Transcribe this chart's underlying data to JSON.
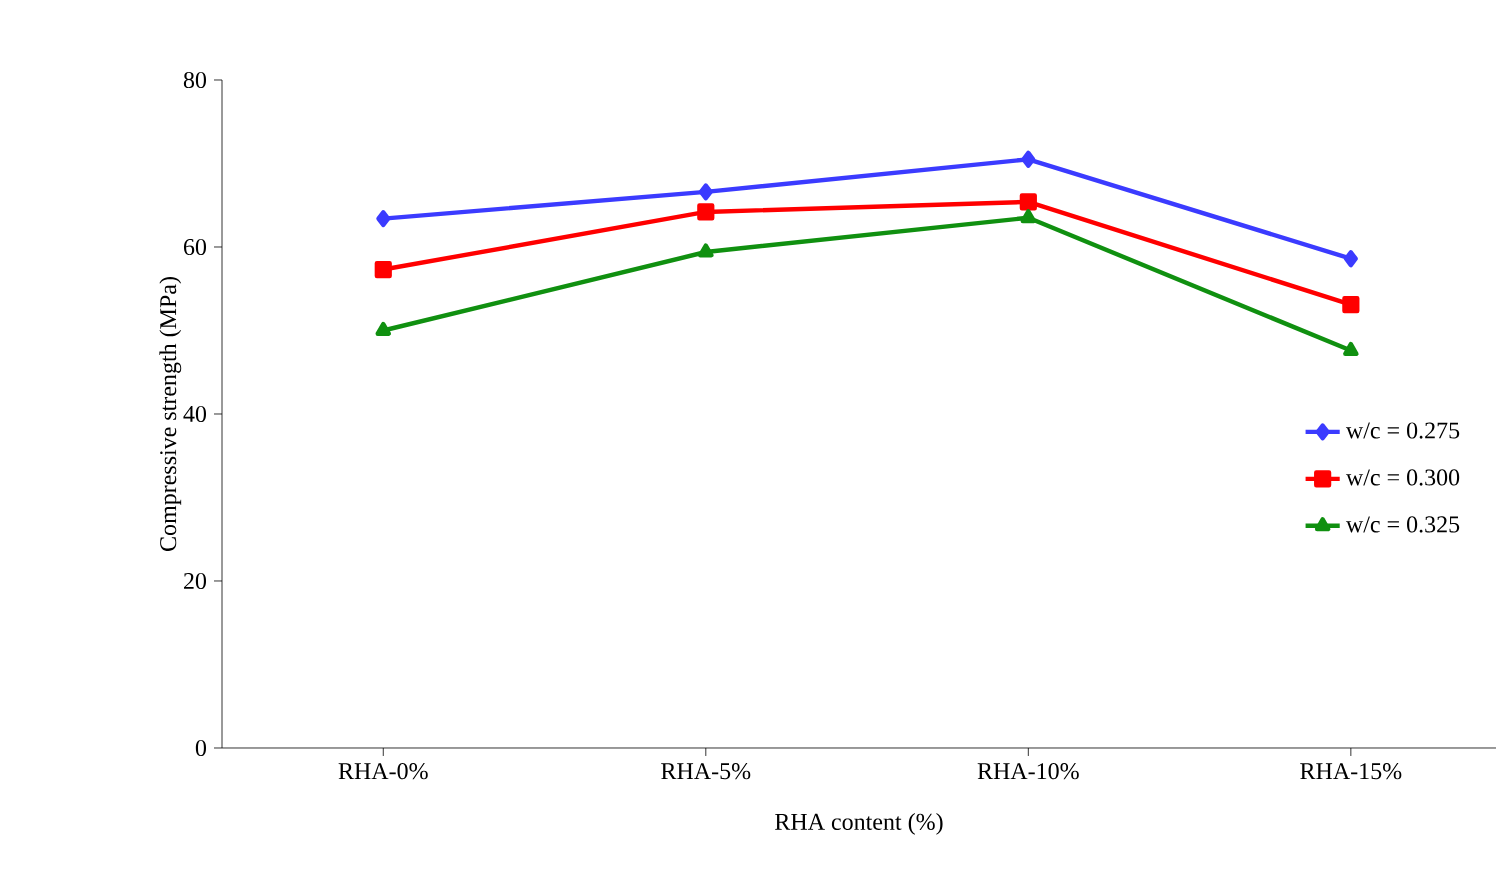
{
  "chart_data": {
    "type": "line",
    "xlabel": "RHA content (%)",
    "ylabel": "Compressive strength (MPa)",
    "categories": [
      "RHA-0%",
      "RHA-5%",
      "RHA-10%",
      "RHA-15%"
    ],
    "ylim": [
      0,
      80
    ],
    "yticks": [
      0,
      20,
      40,
      60,
      80
    ],
    "grid": false,
    "legend": "right",
    "line_style": "solid",
    "series": [
      {
        "name": "w/c = 0.275",
        "color": "#3b3bff",
        "marker": "diamond",
        "values": [
          63.4,
          66.6,
          70.5,
          58.6
        ]
      },
      {
        "name": "w/c = 0.300",
        "color": "#ff0000",
        "marker": "square",
        "values": [
          57.3,
          64.2,
          65.4,
          53.1
        ]
      },
      {
        "name": "w/c = 0.325",
        "color": "#109010",
        "marker": "triangle",
        "values": [
          50.0,
          59.4,
          63.5,
          47.6
        ]
      }
    ]
  }
}
